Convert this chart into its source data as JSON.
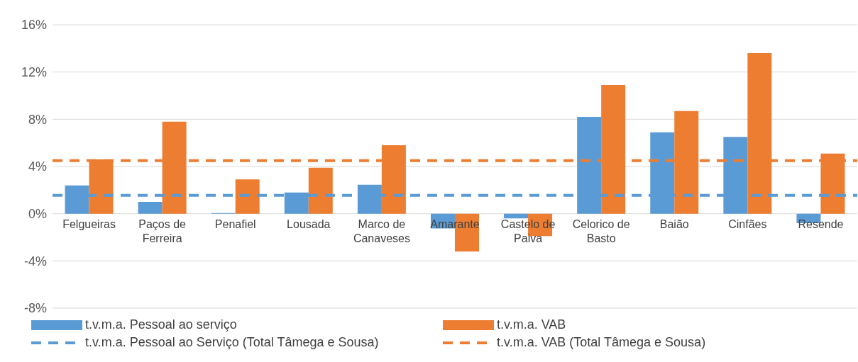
{
  "chart_data": {
    "type": "bar",
    "categories": [
      "Felgueiras",
      "Paços de Ferreira",
      "Penafiel",
      "Lousada",
      "Marco de Canaveses",
      "Amarante",
      "Castelo de Paiva",
      "Celorico de Basto",
      "Baião",
      "Cinfães",
      "Resende"
    ],
    "series": [
      {
        "name": "t.v.m.a. Pessoal ao serviço",
        "color": "#5b9bd5",
        "values": [
          2.4,
          1.0,
          0.05,
          1.8,
          2.45,
          -1.25,
          -0.4,
          8.2,
          6.9,
          6.5,
          -0.8
        ]
      },
      {
        "name": "t.v.m.a. VAB",
        "color": "#ed7d31",
        "values": [
          4.6,
          7.8,
          2.9,
          3.9,
          5.8,
          -3.2,
          -1.9,
          10.9,
          8.7,
          13.6,
          5.1
        ]
      }
    ],
    "ref_lines": [
      {
        "axis": "y",
        "value": 1.55,
        "label": "t.v.m.a. Pessoal ao Serviço (Total Tâmega e Sousa)",
        "color": "#5b9bd5",
        "line_style": "dashed"
      },
      {
        "axis": "y",
        "value": 4.5,
        "label": "t.v.m.a. VAB (Total Tâmega e Sousa)",
        "color": "#ed7d31",
        "line_style": "dashed"
      }
    ],
    "ylim": [
      -8,
      16
    ],
    "yticks": [
      {
        "value": -8,
        "label": "-8%"
      },
      {
        "value": -4,
        "label": "-4%"
      },
      {
        "value": 0,
        "label": "0%"
      },
      {
        "value": 4,
        "label": "4%"
      },
      {
        "value": 8,
        "label": "8%"
      },
      {
        "value": 12,
        "label": "12%"
      },
      {
        "value": 16,
        "label": "16%"
      }
    ],
    "grid": "y",
    "legend": "bottom"
  }
}
